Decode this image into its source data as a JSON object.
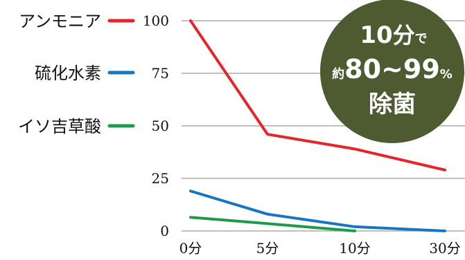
{
  "chart_data": {
    "type": "line",
    "categories": [
      "0分",
      "5分",
      "10分",
      "30分"
    ],
    "ylim": [
      0,
      100
    ],
    "yticks": [
      0,
      25,
      50,
      75,
      100
    ],
    "grid": true,
    "legend_placement": "left",
    "series": [
      {
        "name": "アンモニア",
        "color": "#e8232a",
        "values": [
          100,
          46,
          39,
          29
        ]
      },
      {
        "name": "硫化水素",
        "color": "#1676c4",
        "values": [
          19,
          8,
          2,
          0
        ]
      },
      {
        "name": "イソ吉草酸",
        "color": "#1d9a4a",
        "values": [
          6.5,
          3.5,
          0,
          null
        ]
      }
    ]
  },
  "badge": {
    "line1_number": "10",
    "line1_unit": "分",
    "line1_suffix": "で",
    "line2_prefix": "約",
    "line2_range": "80~99",
    "line2_unit": "%",
    "line3": "除菌",
    "color": "#4e5a2f"
  }
}
